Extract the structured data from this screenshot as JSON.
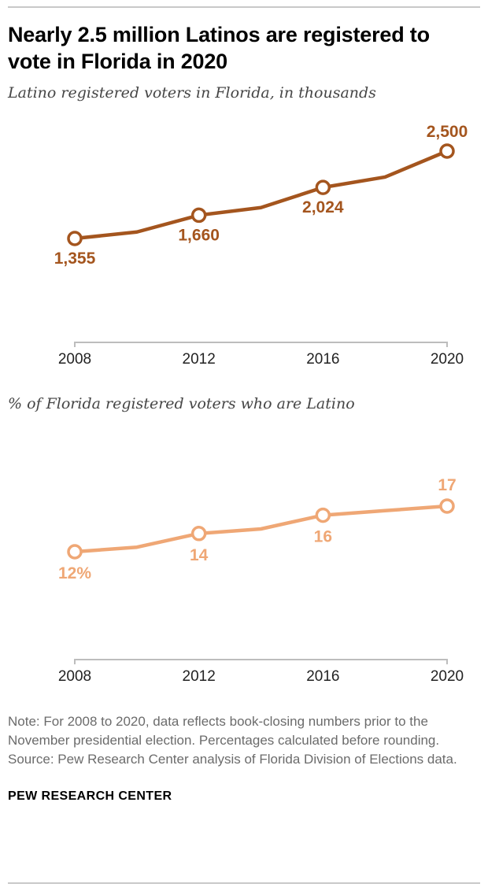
{
  "header": {
    "title": "Nearly 2.5 million Latinos are registered to vote in Florida in 2020"
  },
  "chart_data": [
    {
      "type": "line",
      "subtitle": "Latino registered voters in Florida, in thousands",
      "x": [
        2008,
        2010,
        2012,
        2014,
        2016,
        2018,
        2020
      ],
      "series": [
        {
          "name": "Latino registered voters in Florida (thousands)",
          "values": [
            1355,
            1440,
            1660,
            1760,
            2024,
            2160,
            2500
          ]
        }
      ],
      "labeled_points": [
        {
          "x": 2008,
          "label": "1,355",
          "position": "below"
        },
        {
          "x": 2012,
          "label": "1,660",
          "position": "below"
        },
        {
          "x": 2016,
          "label": "2,024",
          "position": "below"
        },
        {
          "x": 2020,
          "label": "2,500",
          "position": "above"
        }
      ],
      "x_tick_labels": [
        "2008",
        "2012",
        "2016",
        "2020"
      ],
      "color": "#a4551e",
      "axis_color": "#bdbdbd",
      "ylim": [
        1355,
        2500
      ],
      "grid": false,
      "legend": "none"
    },
    {
      "type": "line",
      "subtitle": "% of Florida registered voters who are Latino",
      "x": [
        2008,
        2010,
        2012,
        2014,
        2016,
        2018,
        2020
      ],
      "series": [
        {
          "name": "% of Florida registered voters who are Latino",
          "values": [
            12,
            12.5,
            14,
            14.5,
            16,
            16.5,
            17
          ]
        }
      ],
      "labeled_points": [
        {
          "x": 2008,
          "label": "12%",
          "position": "below"
        },
        {
          "x": 2012,
          "label": "14",
          "position": "below"
        },
        {
          "x": 2016,
          "label": "16",
          "position": "below"
        },
        {
          "x": 2020,
          "label": "17",
          "position": "above"
        }
      ],
      "x_tick_labels": [
        "2008",
        "2012",
        "2016",
        "2020"
      ],
      "color": "#efa775",
      "axis_color": "#bdbdbd",
      "ylim": [
        12,
        17
      ],
      "grid": false,
      "legend": "none"
    }
  ],
  "notes": {
    "note": "Note: For 2008 to 2020, data reflects book-closing numbers prior to the November presidential election. Percentages calculated before rounding.",
    "source": "Source: Pew Research Center analysis of Florida Division of Elections data."
  },
  "footer": {
    "brand": "PEW RESEARCH CENTER"
  }
}
